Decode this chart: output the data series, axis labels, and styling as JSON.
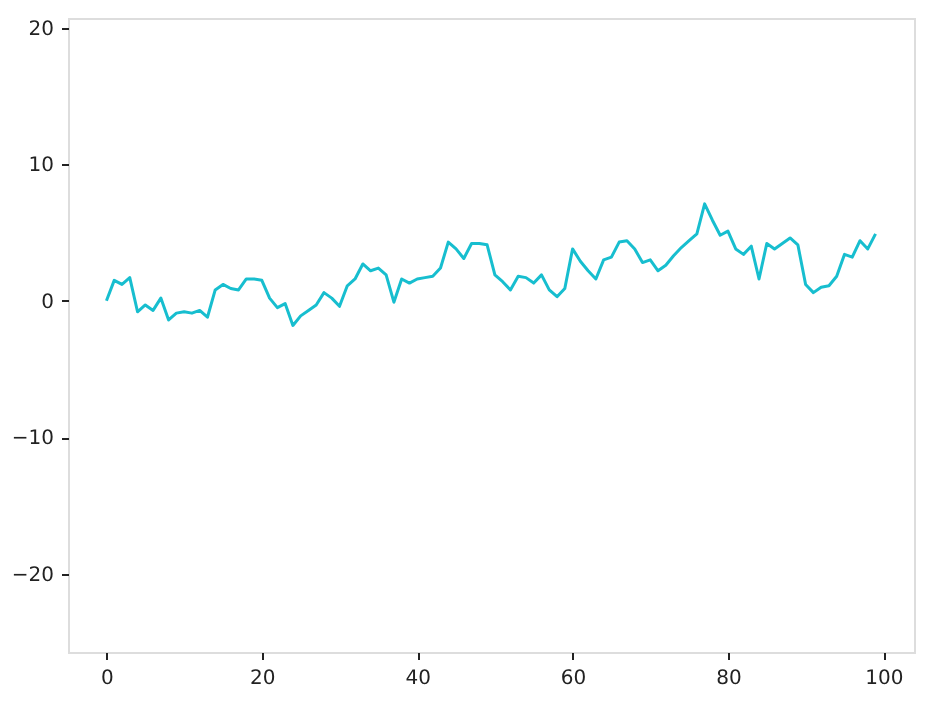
{
  "chart_data": {
    "type": "line",
    "x": [
      0,
      1,
      2,
      3,
      4,
      5,
      6,
      7,
      8,
      9,
      10,
      11,
      12,
      13,
      14,
      15,
      16,
      17,
      18,
      19,
      20,
      21,
      22,
      23,
      24,
      25,
      26,
      27,
      28,
      29,
      30,
      31,
      32,
      33,
      34,
      35,
      36,
      37,
      38,
      39,
      40,
      41,
      42,
      43,
      44,
      45,
      46,
      47,
      48,
      49,
      50,
      51,
      52,
      53,
      54,
      55,
      56,
      57,
      58,
      59,
      60,
      61,
      62,
      63,
      64,
      65,
      66,
      67,
      68,
      69,
      70,
      71,
      72,
      73,
      74,
      75,
      76,
      77,
      78,
      79,
      80,
      81,
      82,
      83,
      84,
      85,
      86,
      87,
      88,
      89,
      90,
      91,
      92,
      93,
      94,
      95,
      96,
      97,
      98,
      99
    ],
    "series": [
      {
        "color": "#17becf",
        "values": [
          0,
          1.5,
          1.2,
          1.7,
          -0.8,
          -0.3,
          -0.7,
          0.2,
          -1.4,
          -0.9,
          -0.8,
          -0.9,
          -0.7,
          -1.2,
          0.8,
          1.2,
          0.9,
          0.8,
          1.6,
          1.6,
          1.5,
          0.2,
          -0.5,
          -0.2,
          -1.8,
          -1.1,
          -0.7,
          -0.3,
          0.6,
          0.2,
          -0.4,
          1.1,
          1.6,
          2.7,
          2.2,
          2.4,
          1.9,
          -0.1,
          1.6,
          1.3,
          1.6,
          1.7,
          1.8,
          2.4,
          4.3,
          3.8,
          3.1,
          4.2,
          4.2,
          4.1,
          1.9,
          1.4,
          0.8,
          1.8,
          1.7,
          1.3,
          1.9,
          0.8,
          0.3,
          0.9,
          3.8,
          2.9,
          2.2,
          1.6,
          3.0,
          3.2,
          4.3,
          4.4,
          3.8,
          2.8,
          3.0,
          2.2,
          2.6,
          3.3,
          3.9,
          4.4,
          4.9,
          7.1,
          5.9,
          4.8,
          5.1,
          3.8,
          3.4,
          4.0,
          1.6,
          4.2,
          3.8,
          4.2,
          4.6,
          4.1,
          1.2,
          0.6,
          1.0,
          1.1,
          1.8,
          3.4,
          3.2,
          4.4,
          3.8,
          4.9
        ]
      }
    ],
    "xlim": [
      -4.95,
      103.95
    ],
    "ylim": [
      -25.7,
      20.7
    ],
    "xticks": [
      0,
      20,
      40,
      60,
      80,
      100
    ],
    "yticks": [
      {
        "value": -20,
        "label": "−20"
      },
      {
        "value": -10,
        "label": "−10"
      },
      0,
      10,
      20
    ],
    "grid": false,
    "legend": false,
    "marker": "none",
    "line_style": "solid"
  }
}
